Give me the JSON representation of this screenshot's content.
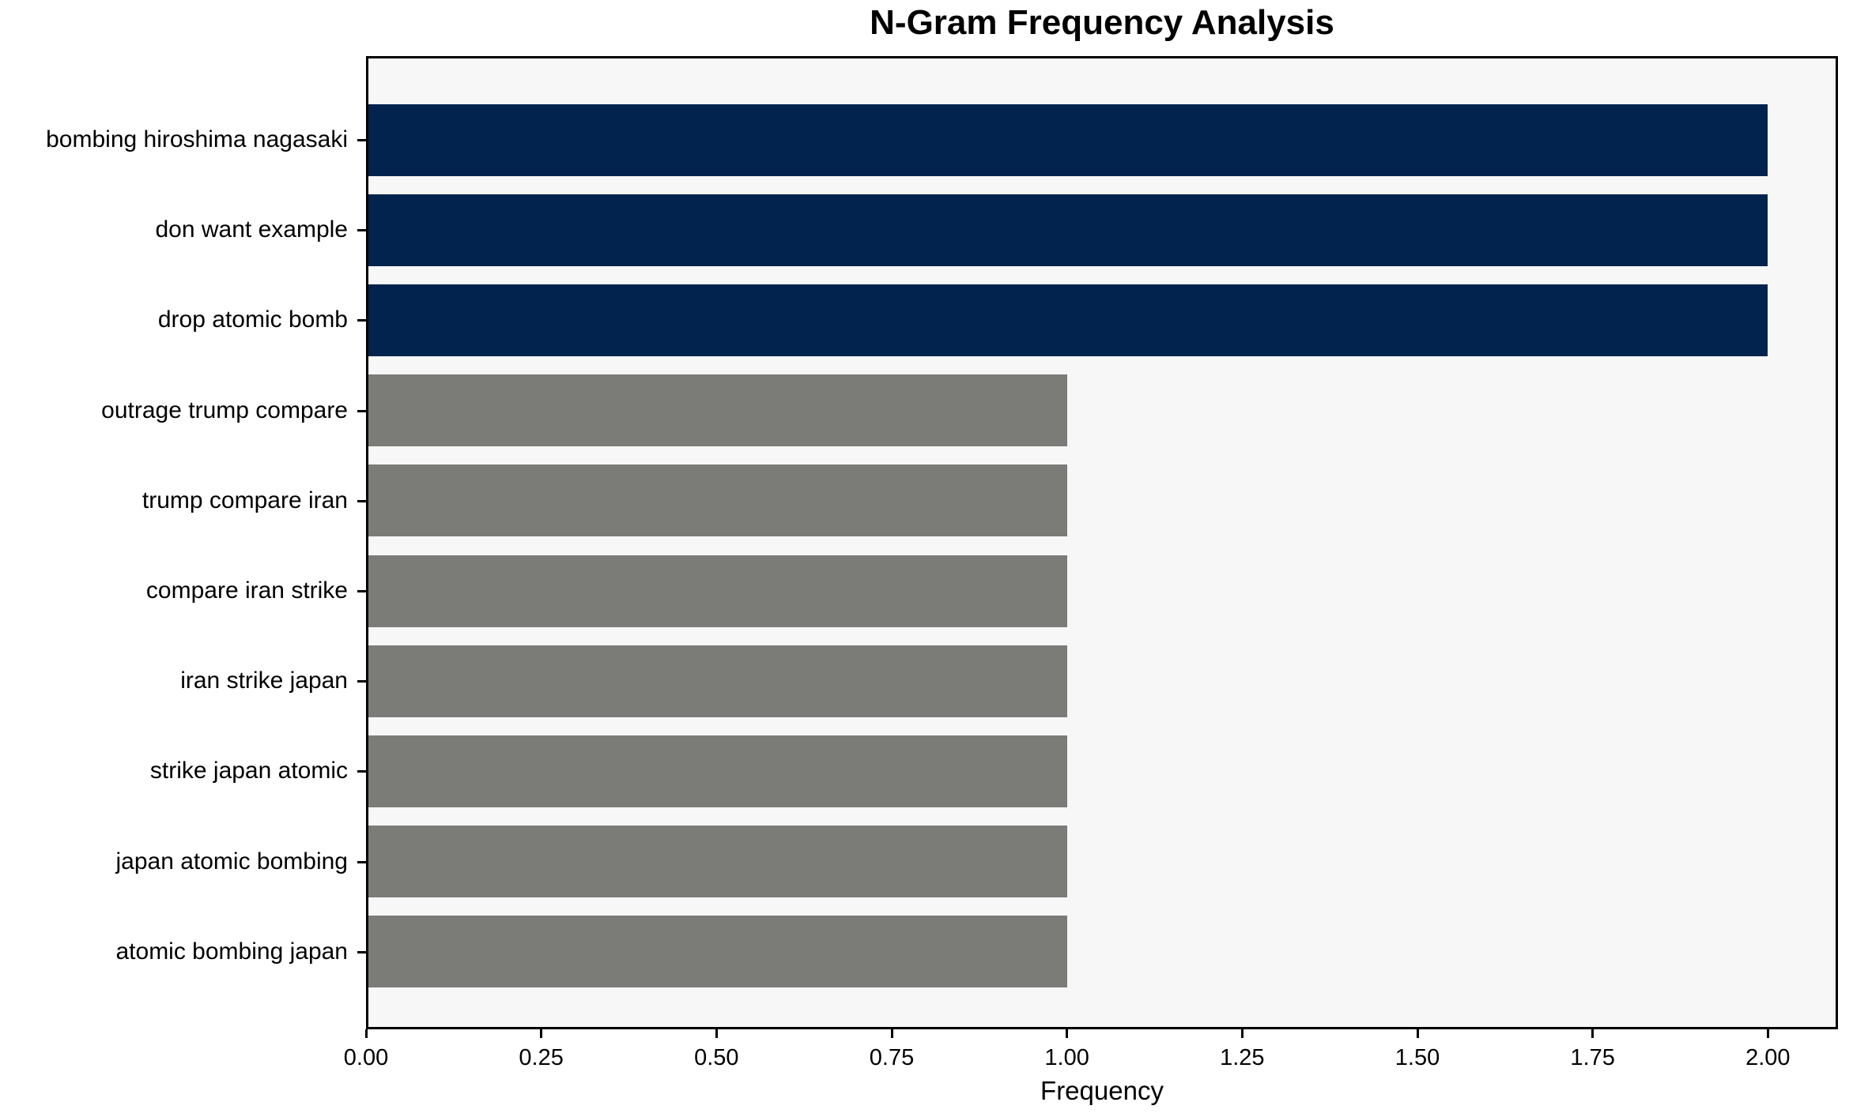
{
  "chart_data": {
    "type": "bar",
    "orientation": "horizontal",
    "title": "N-Gram Frequency Analysis",
    "xlabel": "Frequency",
    "ylabel": "",
    "categories": [
      "bombing hiroshima nagasaki",
      "don want example",
      "drop atomic bomb",
      "outrage trump compare",
      "trump compare iran",
      "compare iran strike",
      "iran strike japan",
      "strike japan atomic",
      "japan atomic bombing",
      "atomic bombing japan"
    ],
    "values": [
      2,
      2,
      2,
      1,
      1,
      1,
      1,
      1,
      1,
      1
    ],
    "bar_colors": [
      "#02234d",
      "#02234d",
      "#02234d",
      "#7b7b77",
      "#7b7b77",
      "#7b7b77",
      "#7b7b77",
      "#7b7b77",
      "#7b7b77",
      "#7b7b77"
    ],
    "x_ticks": [
      "0.00",
      "0.25",
      "0.50",
      "0.75",
      "1.00",
      "1.25",
      "1.50",
      "1.75",
      "2.00"
    ],
    "xlim": [
      0,
      2.1
    ],
    "grid": false,
    "legend": null,
    "colors": {
      "highlight_bar": "#02234d",
      "default_bar": "#7b7b77",
      "plot_background": "#f7f7f7",
      "figure_background": "#ffffff",
      "axis": "#000000",
      "text": "#000000"
    }
  }
}
